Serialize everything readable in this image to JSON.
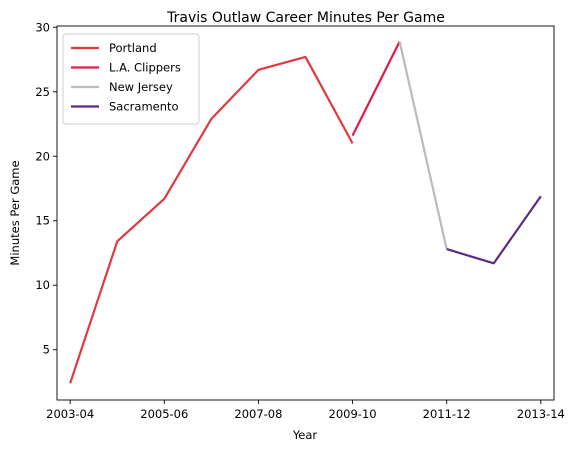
{
  "chart_data": {
    "type": "line",
    "title": "Travis Outlaw Career Minutes Per Game",
    "xlabel": "Year",
    "ylabel": "Minutes Per Game",
    "x_tick_labels": [
      "2003-04",
      "2005-06",
      "2007-08",
      "2009-10",
      "2011-12",
      "2013-14"
    ],
    "x_ticks": [
      2003,
      2005,
      2007,
      2009,
      2011,
      2013
    ],
    "xlim": [
      2002.72,
      2013.28
    ],
    "y_ticks": [
      5,
      10,
      15,
      20,
      25,
      30
    ],
    "ylim": [
      1.1,
      30.1
    ],
    "grid": false,
    "legend_position": "upper-left",
    "series": [
      {
        "name": "Portland",
        "color": "#e03a3e",
        "points": [
          [
            2003,
            2.4
          ],
          [
            2004,
            13.4
          ],
          [
            2005,
            16.7
          ],
          [
            2006,
            22.9
          ],
          [
            2007,
            26.7
          ],
          [
            2008,
            27.7
          ],
          [
            2009,
            21.0
          ]
        ]
      },
      {
        "name": "L.A. Clippers",
        "color": "#e31b48",
        "points": [
          [
            2009,
            21.6
          ],
          [
            2010,
            28.9
          ]
        ]
      },
      {
        "name": "New Jersey",
        "color": "#bbbbbb",
        "points": [
          [
            2010,
            28.9
          ],
          [
            2011,
            12.8
          ]
        ]
      },
      {
        "name": "Sacramento",
        "color": "#5b2b82",
        "points": [
          [
            2011,
            12.8
          ],
          [
            2012,
            11.7
          ],
          [
            2013,
            16.9
          ]
        ]
      }
    ]
  }
}
